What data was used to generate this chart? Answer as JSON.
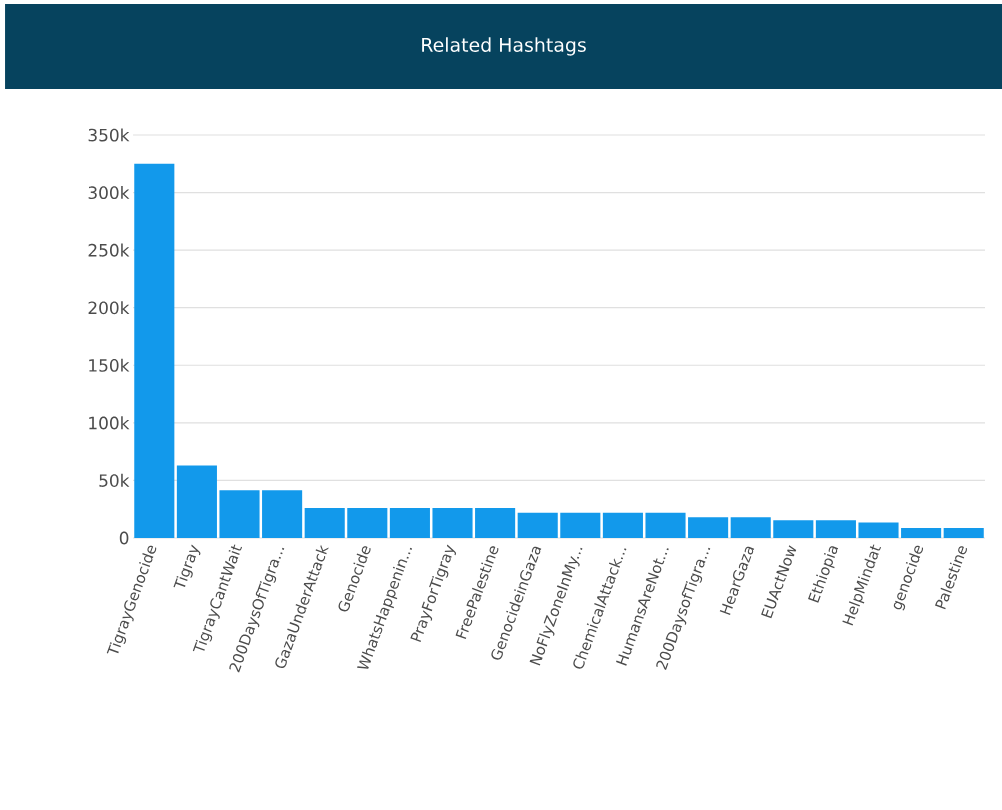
{
  "chart_data": {
    "type": "bar",
    "title": "Related Hashtags",
    "categories": [
      "TigrayGenocide",
      "Tigray",
      "TigrayCantWait",
      "200DaysOfTigra...",
      "GazaUnderAttack",
      "Genocide",
      "WhatsHappenin...",
      "PrayForTigray",
      "FreePalestine",
      "GenocideinGaza",
      "NoFlyZoneInMy...",
      "ChemicalAttack...",
      "HumansAreNot...",
      "200DaysofTigra...",
      "HearGaza",
      "EUActNow",
      "Ethiopia",
      "HelpMindat",
      "genocide",
      "Palestine"
    ],
    "values": [
      325000,
      63000,
      41500,
      41500,
      26000,
      26000,
      26000,
      26000,
      26000,
      22000,
      22000,
      22000,
      22000,
      18000,
      18000,
      15500,
      15500,
      13500,
      8700,
      8700
    ],
    "color": "#1299eb",
    "ylim": [
      0,
      350000
    ],
    "yticks": [
      0,
      {
        "value": 50000,
        "label": "50k"
      },
      {
        "value": 100000,
        "label": "100k"
      },
      {
        "value": 150000,
        "label": "150k"
      },
      {
        "value": 200000,
        "label": "200k"
      },
      {
        "value": 250000,
        "label": "250k"
      },
      {
        "value": 300000,
        "label": "300k"
      },
      {
        "value": 350000,
        "label": "350k"
      }
    ],
    "grid": "y"
  }
}
